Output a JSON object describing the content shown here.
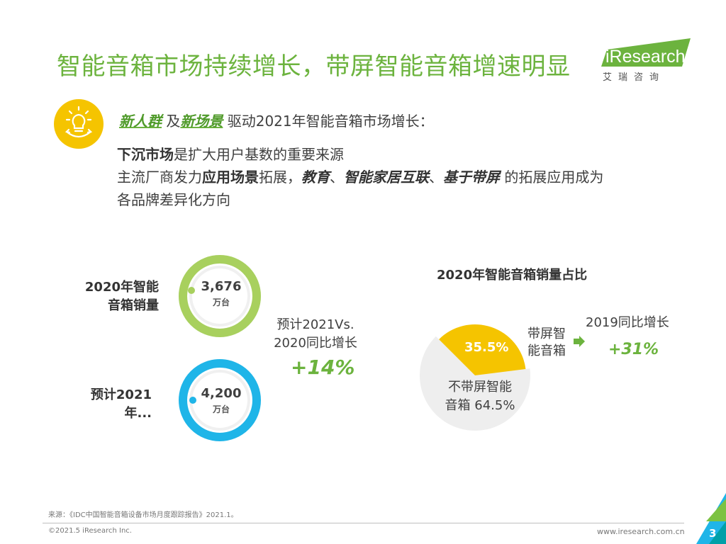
{
  "slide": {
    "title": "智能音箱市场持续增长，带屏智能音箱增速明显",
    "logo": {
      "brand": "iResearch",
      "sub": "艾瑞咨询"
    },
    "colors": {
      "green": "#6cb33e",
      "yellow": "#f5c400",
      "blue": "#1fb5e8",
      "grey": "#eeeeee"
    },
    "icon": "lightbulb-icon",
    "highlights": {
      "line1": {
        "t1": "新人群",
        "t2": " 及",
        "t3": "新场景",
        "t4": " 驱动2021年智能音箱市场增长："
      },
      "line2": {
        "t1": "下沉市场",
        "t2": "是扩大用户基数的重要来源"
      },
      "line3": {
        "t1": "主流厂商发力",
        "t2": "应用场景",
        "t3": "拓展，",
        "t4": "教育",
        "t5": "、",
        "t6": "智能家居互联",
        "t7": "、",
        "t8": "基于带屏",
        "t9": " 的拓展应用成为"
      },
      "line4": {
        "t1": "各品牌差异化方向"
      }
    },
    "ring2020": {
      "label1": "2020年智能",
      "label2": "音箱销量",
      "value": "3,676",
      "unit": "万台"
    },
    "ring2021": {
      "label1": "预计2021",
      "label2": "年...",
      "value": "4,200",
      "unit": "万台"
    },
    "forecast": {
      "label1": "预计2021Vs.",
      "label2": "2020同比增长",
      "value": "+14%"
    },
    "source": "来源：《IDC中国智能音箱设备市场月度跟踪报告》2021.1。",
    "copyright": "©2021.5 iResearch Inc.",
    "website": "www.iresearch.com.cn",
    "page": "3"
  },
  "chart_data": {
    "type": "pie",
    "title": "2020年智能音箱销量占比",
    "slices": [
      {
        "name": "带屏智能音箱",
        "value": 35.5,
        "label": "35.5%",
        "color": "#f5c400"
      },
      {
        "name": "不带屏智能音箱",
        "value": 64.5,
        "label": "64.5%",
        "color": "#eeeeee"
      }
    ],
    "labels": {
      "screen1": "带屏智",
      "screen2": "能音箱",
      "noscreen1": "不带屏智能",
      "noscreen2": "音箱 64.5%"
    },
    "annotation": {
      "label": "2019同比增长",
      "value": "+31%"
    }
  }
}
